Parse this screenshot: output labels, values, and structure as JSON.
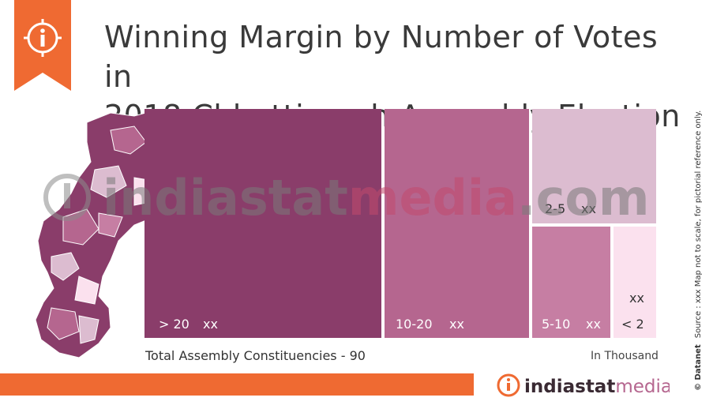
{
  "title": {
    "line1": "Winning Margin by Number of Votes in",
    "line2": "2018 Chhattisgarh Assembly Election"
  },
  "chart_data": {
    "type": "treemap",
    "cells": [
      {
        "category": "> 20",
        "value_label": "xx",
        "color": "#8a3d6a"
      },
      {
        "category": "10-20",
        "value_label": "xx",
        "color": "#b5668f"
      },
      {
        "category": "2-5",
        "value_label": "xx",
        "color": "#dcbcd0"
      },
      {
        "category": "5-10",
        "value_label": "xx",
        "color": "#c67ea3"
      },
      {
        "category": "< 2",
        "value_label": "xx",
        "color": "#fbe1ee"
      }
    ]
  },
  "notes": {
    "total": "Total Assembly Constituencies - 90",
    "unit": "In Thousand"
  },
  "side_note": "Source : xxx   Map not to scale, for pictorial reference only.",
  "brand": {
    "logo_text_1": "indiastat",
    "logo_text_2": "media",
    "watermark_1": "indiastat",
    "watermark_2": "media",
    "watermark_3": ".com",
    "side_brand": "© Datanet"
  },
  "colors": {
    "accent": "#ef6a32",
    "logo_dark": "#3a2a33",
    "logo_accent": "#b5668f"
  },
  "icons": {
    "badge": "info-icon"
  }
}
